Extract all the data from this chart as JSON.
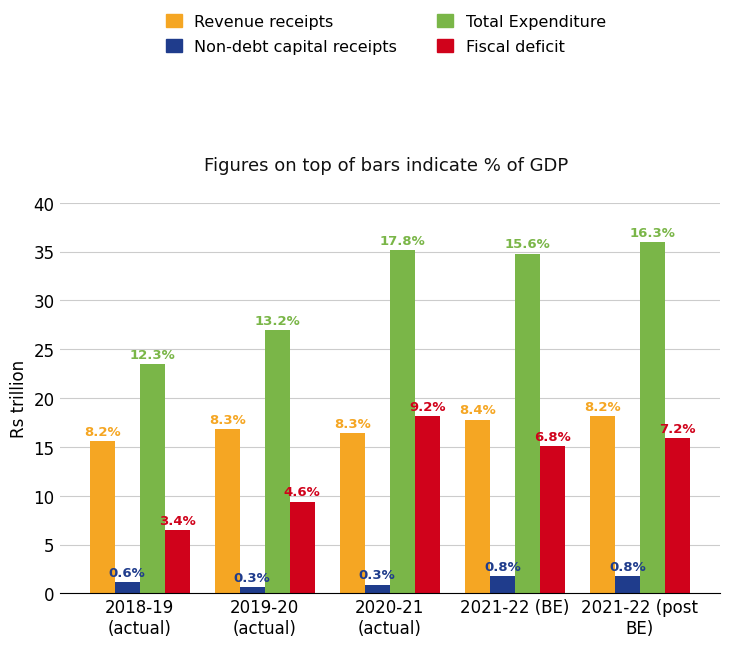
{
  "categories": [
    "2018-19\n(actual)",
    "2019-20\n(actual)",
    "2020-21\n(actual)",
    "2021-22 (BE)",
    "2021-22 (post\nBE)"
  ],
  "series": {
    "Revenue receipts": {
      "values": [
        15.6,
        16.8,
        16.4,
        17.8,
        18.2
      ],
      "color": "#F5A623",
      "labels": [
        "8.2%",
        "8.3%",
        "8.3%",
        "8.4%",
        "8.2%"
      ],
      "label_color": "#F5A623"
    },
    "Non-debt capital receipts": {
      "values": [
        1.15,
        0.65,
        0.9,
        1.8,
        1.8
      ],
      "color": "#1F3C8C",
      "labels": [
        "0.6%",
        "0.3%",
        "0.3%",
        "0.8%",
        "0.8%"
      ],
      "label_color": "#1F3C8C"
    },
    "Total Expenditure": {
      "values": [
        23.5,
        27.0,
        35.2,
        34.8,
        36.0
      ],
      "color": "#7AB648",
      "labels": [
        "12.3%",
        "13.2%",
        "17.8%",
        "15.6%",
        "16.3%"
      ],
      "label_color": "#7AB648"
    },
    "Fiscal deficit": {
      "values": [
        6.5,
        9.4,
        18.2,
        15.1,
        15.9
      ],
      "color": "#D0021B",
      "labels": [
        "3.4%",
        "4.6%",
        "9.2%",
        "6.8%",
        "7.2%"
      ],
      "label_color": "#D0021B"
    }
  },
  "ylabel": "Rs trillion",
  "subtitle": "Figures on top of bars indicate % of GDP",
  "ylim": [
    0,
    40
  ],
  "yticks": [
    0,
    5,
    10,
    15,
    20,
    25,
    30,
    35,
    40
  ],
  "bar_width": 0.2,
  "background_color": "#FFFFFF",
  "legend_order": [
    "Revenue receipts",
    "Non-debt capital receipts",
    "Total Expenditure",
    "Fiscal deficit"
  ],
  "subtitle_fontsize": 13,
  "axis_label_fontsize": 12,
  "tick_fontsize": 12,
  "bar_label_fontsize": 9.5
}
